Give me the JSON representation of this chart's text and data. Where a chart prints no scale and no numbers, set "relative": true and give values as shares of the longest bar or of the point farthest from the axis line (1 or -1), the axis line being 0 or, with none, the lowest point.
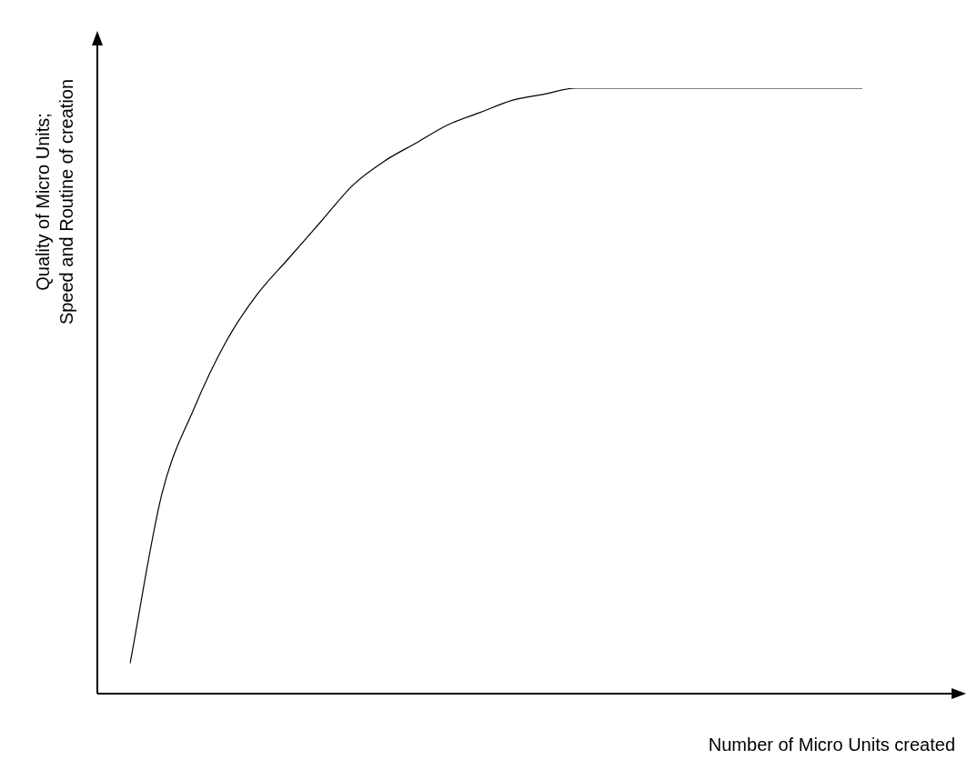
{
  "chart_data": {
    "type": "line",
    "xlabel": "Number of Micro Units created",
    "ylabel": "Quality of Micro Units;\nSpeed and Routine of creation",
    "relative": true,
    "legend": false,
    "marker": "none",
    "categories": [
      null,
      null,
      null,
      null,
      null,
      null,
      null,
      null,
      null,
      null,
      null,
      null,
      null,
      null,
      null,
      null,
      null,
      null,
      null,
      null,
      null,
      null,
      null,
      null
    ],
    "series": [
      {
        "color": "#000000",
        "values": [
          0.05,
          0.33,
          0.47,
          0.58,
          0.66,
          0.72,
          0.78,
          0.84,
          0.88,
          0.91,
          0.94,
          0.96,
          0.98,
          0.99,
          1,
          1,
          1,
          1,
          1,
          1,
          1,
          1,
          1,
          1
        ]
      }
    ]
  }
}
